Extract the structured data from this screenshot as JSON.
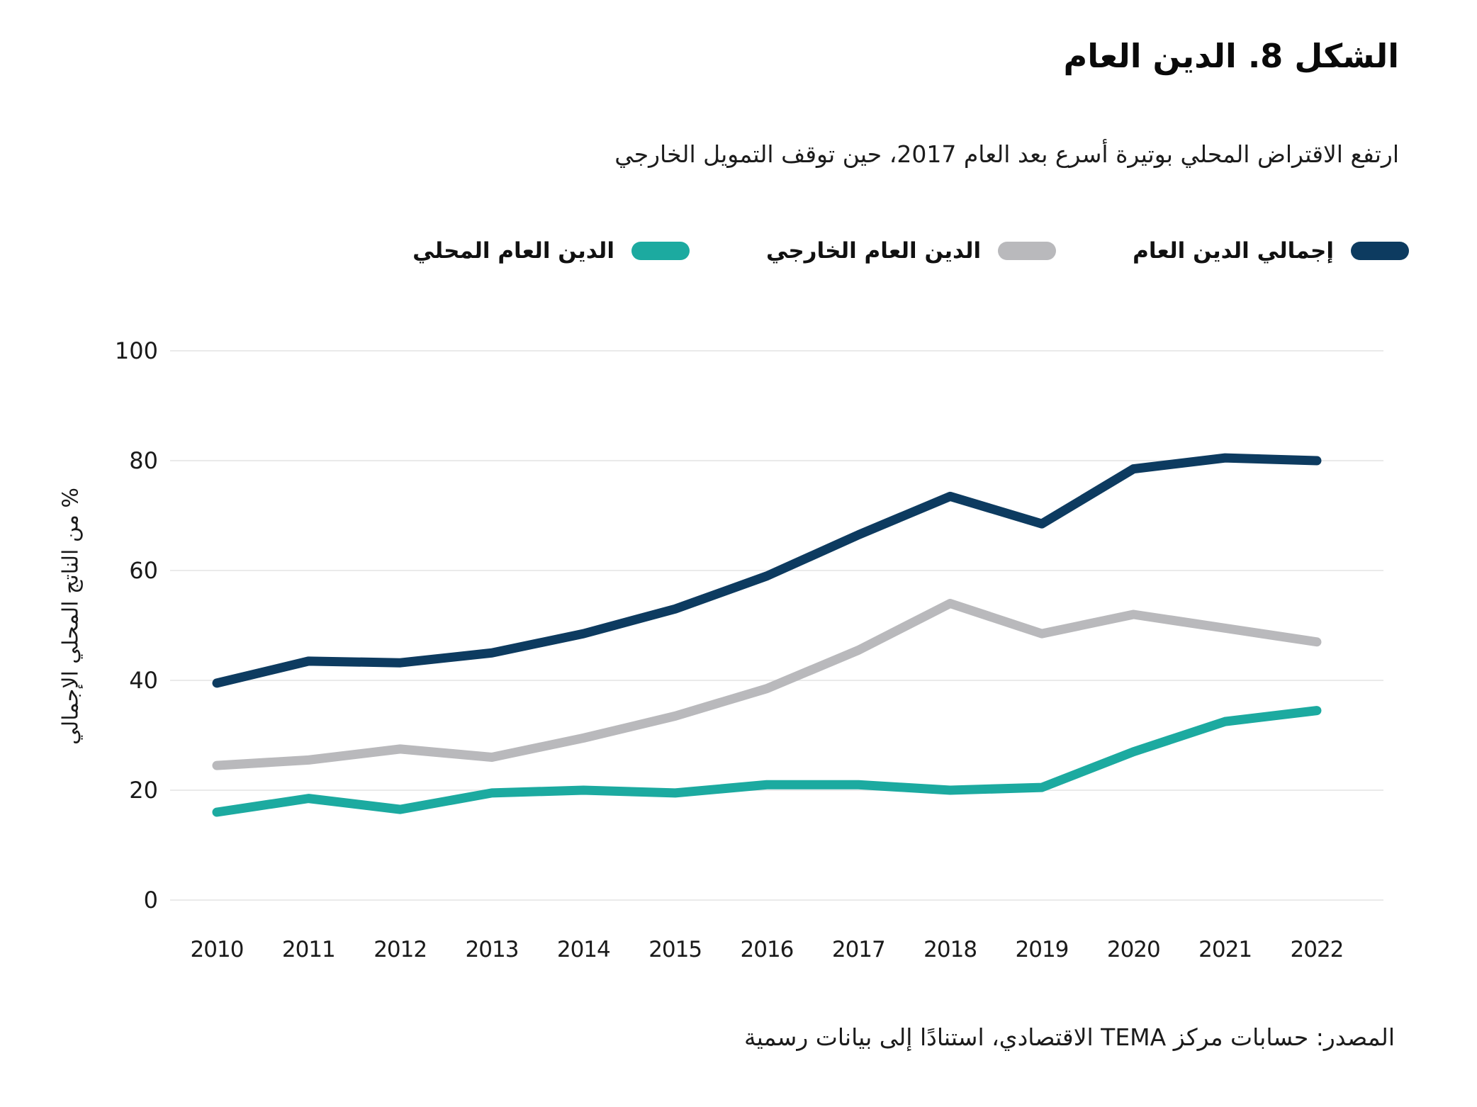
{
  "figure": {
    "title": "الشكل 8. الدين العام",
    "subtitle": "ارتفع الاقتراض المحلي بوتيرة أسرع بعد العام 2017، حين توقف التمويل الخارجي",
    "source": "المصدر: حسابات مركز TEMA الاقتصادي، استنادًا إلى بيانات رسمية"
  },
  "chart_data": {
    "type": "line",
    "x": [
      2010,
      2011,
      2012,
      2013,
      2014,
      2015,
      2016,
      2017,
      2018,
      2019,
      2020,
      2021,
      2022
    ],
    "series": [
      {
        "id": "total-public-debt",
        "name": "إجمالي الدين العام",
        "color": "#0d3b60",
        "values": [
          39.5,
          43.5,
          43.2,
          45,
          48.5,
          53,
          59,
          66.5,
          73.5,
          68.5,
          78.5,
          80.5,
          80
        ]
      },
      {
        "id": "external-public-debt",
        "name": "الدين العام الخارجي",
        "color": "#b9b9bc",
        "values": [
          24.5,
          25.5,
          27.5,
          26,
          29.5,
          33.5,
          38.5,
          45.5,
          54,
          48.5,
          52,
          49.5,
          47
        ]
      },
      {
        "id": "domestic-public-debt",
        "name": "الدين العام المحلي",
        "color": "#1caaa0",
        "values": [
          16,
          18.5,
          16.5,
          19.5,
          20,
          19.5,
          21,
          21,
          20,
          20.5,
          27,
          32.5,
          34.5
        ]
      }
    ],
    "ylabel": "% من الناتج المحلي الإجمالي",
    "xlabel": "",
    "ylim": [
      0,
      100
    ],
    "y_ticks": [
      0,
      20,
      40,
      60,
      80,
      100
    ],
    "grid": "horizontal",
    "legend_position": "top-right",
    "gridline_color": "#eaeaea"
  }
}
